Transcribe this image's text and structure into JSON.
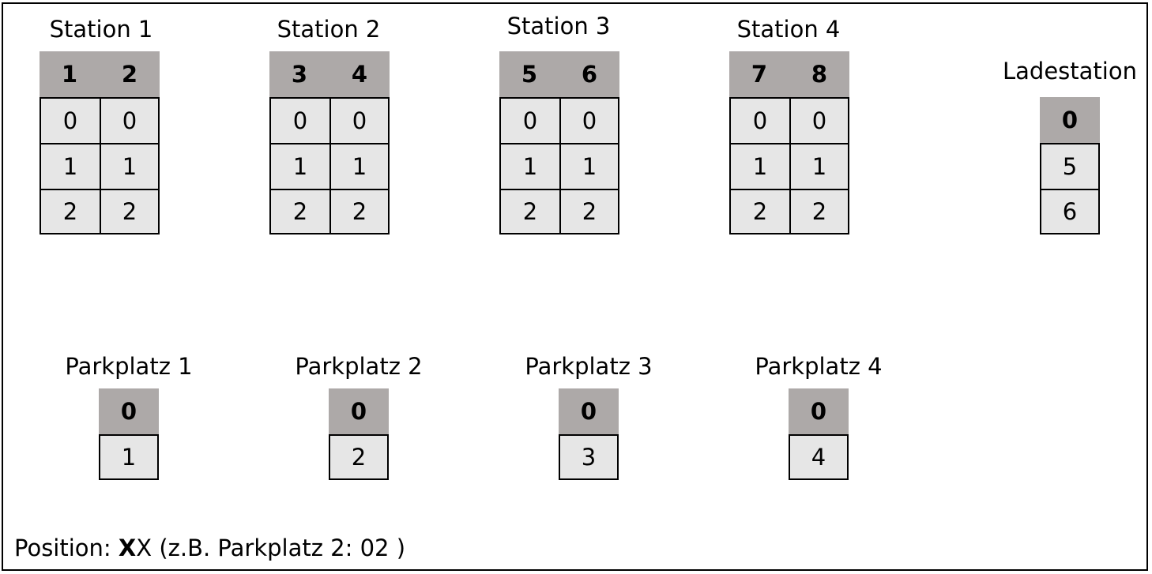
{
  "stations": [
    {
      "title": "Station 1",
      "headers": [
        "1",
        "2"
      ],
      "rows": [
        [
          "0",
          "0"
        ],
        [
          "1",
          "1"
        ],
        [
          "2",
          "2"
        ]
      ]
    },
    {
      "title": "Station 2",
      "headers": [
        "3",
        "4"
      ],
      "rows": [
        [
          "0",
          "0"
        ],
        [
          "1",
          "1"
        ],
        [
          "2",
          "2"
        ]
      ]
    },
    {
      "title": "Station 3",
      "headers": [
        "5",
        "6"
      ],
      "rows": [
        [
          "0",
          "0"
        ],
        [
          "1",
          "1"
        ],
        [
          "2",
          "2"
        ]
      ]
    },
    {
      "title": "Station 4",
      "headers": [
        "7",
        "8"
      ],
      "rows": [
        [
          "0",
          "0"
        ],
        [
          "1",
          "1"
        ],
        [
          "2",
          "2"
        ]
      ]
    }
  ],
  "ladestation": {
    "title": "Ladestation",
    "header": "0",
    "rows": [
      "5",
      "6"
    ]
  },
  "parkplaetze": [
    {
      "title": "Parkplatz 1",
      "header": "0",
      "rows": [
        "1"
      ]
    },
    {
      "title": "Parkplatz 2",
      "header": "0",
      "rows": [
        "2"
      ]
    },
    {
      "title": "Parkplatz 3",
      "header": "0",
      "rows": [
        "3"
      ]
    },
    {
      "title": "Parkplatz 4",
      "header": "0",
      "rows": [
        "4"
      ]
    }
  ],
  "note": {
    "prefix": "Position: ",
    "bold": "X",
    "rest": "X (z.B. Parkplatz 2: 02 )"
  }
}
